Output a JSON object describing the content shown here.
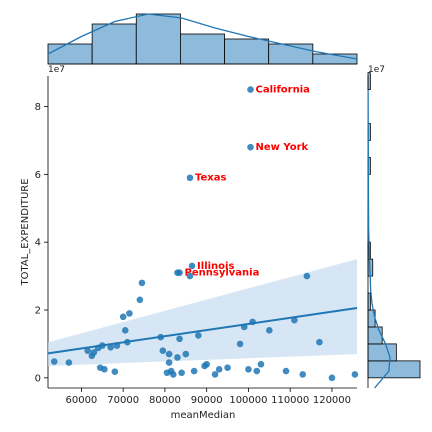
{
  "chart_data": {
    "type": "scatter",
    "title": "",
    "xlabel": "meanMedian",
    "ylabel": "TOTAL_EXPENDITURE",
    "xlim": [
      52000,
      126000
    ],
    "ylim": [
      -3000000,
      89000000
    ],
    "x_ticks": [
      60000,
      70000,
      80000,
      90000,
      100000,
      110000,
      120000
    ],
    "x_tick_labels": [
      "60000",
      "70000",
      "80000",
      "90000",
      "100000",
      "110000",
      "120000"
    ],
    "y_ticks": [
      0,
      20000000,
      40000000,
      60000000,
      80000000
    ],
    "y_tick_labels": [
      "0",
      "2",
      "4",
      "6",
      "8"
    ],
    "y_offset_label": "1e7",
    "marginal_y_offset_label": "1e7",
    "colors": {
      "points": "#1f77b4",
      "line": "#1f77b4",
      "band": "#c6dbef",
      "annotation": "#ff0000",
      "hist": "#8ebbdc"
    },
    "regression": {
      "x": [
        52000,
        126000
      ],
      "y": [
        7200000,
        20600000
      ],
      "ci_lower": [
        3500000,
        7000000
      ],
      "ci_upper": [
        10500000,
        35000000
      ]
    },
    "points": {
      "x": [
        53500,
        57000,
        61500,
        62500,
        63000,
        64000,
        64500,
        65000,
        65500,
        67000,
        68000,
        68500,
        70000,
        70500,
        71000,
        71500,
        74000,
        74500,
        79000,
        79500,
        80500,
        81000,
        81000,
        81500,
        82000,
        83000,
        83000,
        83500,
        84000,
        85000,
        86000,
        87000,
        88000,
        89500,
        90000,
        92000,
        93000,
        95000,
        98000,
        99000,
        100000,
        101000,
        102000,
        103000,
        105000,
        109000,
        111000,
        113000,
        114000,
        117000,
        120000,
        125500
      ],
      "y": [
        4800000,
        4500000,
        8000000,
        6500000,
        7500000,
        8800000,
        3000000,
        9500000,
        2500000,
        9000000,
        1800000,
        9500000,
        18000000,
        14000000,
        10500000,
        19000000,
        23000000,
        28000000,
        12000000,
        8000000,
        1500000,
        7000000,
        4500000,
        2000000,
        1000000,
        6000000,
        31000000,
        11500000,
        1500000,
        7000000,
        30000000,
        2000000,
        12500000,
        3500000,
        4000000,
        1000000,
        2500000,
        3000000,
        10000000,
        15000000,
        2500000,
        16500000,
        2000000,
        4000000,
        14000000,
        2000000,
        17000000,
        1000000,
        30000000,
        10500000,
        0,
        1000000
      ]
    },
    "annotated_points": [
      {
        "label": "California",
        "x": 100500,
        "y": 85000000
      },
      {
        "label": "New York",
        "x": 100500,
        "y": 68000000
      },
      {
        "label": "Texas",
        "x": 86000,
        "y": 59000000
      },
      {
        "label": "Illinois",
        "x": 86500,
        "y": 33000000
      },
      {
        "label": "Pennsylvania",
        "x": 83500,
        "y": 31000000
      }
    ],
    "marginal_x_hist": {
      "bin_edges": [
        52000,
        62570,
        73140,
        83710,
        94280,
        104850,
        115420,
        126000
      ],
      "counts": [
        4,
        8,
        10,
        6,
        5,
        4,
        2
      ]
    },
    "marginal_x_kde": {
      "x": [
        52000,
        60000,
        68000,
        76000,
        84000,
        92000,
        100000,
        108000,
        116000,
        126000
      ],
      "density": [
        0.2,
        0.55,
        0.85,
        1.0,
        0.92,
        0.72,
        0.55,
        0.4,
        0.25,
        0.1
      ]
    },
    "marginal_y_hist": {
      "bin_edges": [
        0,
        5000000,
        10000000,
        15000000,
        20000000,
        25000000,
        30000000,
        35000000,
        40000000,
        45000000,
        50000000,
        55000000,
        60000000,
        65000000,
        70000000,
        75000000,
        80000000,
        85000000,
        90000000
      ],
      "counts": [
        22,
        12,
        6,
        3,
        1,
        0,
        2,
        1,
        0,
        0,
        0,
        0,
        1,
        0,
        1,
        0,
        0,
        1
      ]
    },
    "marginal_y_kde": {
      "y": [
        -3000000,
        2000000,
        6000000,
        10000000,
        14000000,
        18000000,
        22000000,
        26000000,
        30000000,
        36000000,
        44000000,
        55000000,
        65000000,
        75000000,
        85000000
      ],
      "density": [
        0.3,
        0.95,
        1.0,
        0.8,
        0.5,
        0.3,
        0.18,
        0.12,
        0.1,
        0.06,
        0.03,
        0.02,
        0.015,
        0.01,
        0.005
      ]
    }
  }
}
